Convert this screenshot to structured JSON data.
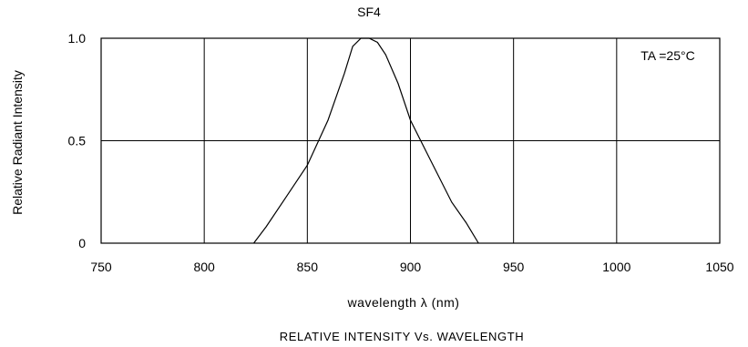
{
  "chart_data": {
    "type": "line",
    "title": "SF4",
    "xlabel": "wavelength λ (nm)",
    "ylabel": "Relative Radiant Intensity",
    "caption": "RELATIVE INTENSITY Vs. WAVELENGTH",
    "annotation": "TA =25°C",
    "xlim": [
      750,
      1050
    ],
    "ylim": [
      0,
      1.0
    ],
    "xticks": [
      "750",
      "800",
      "850",
      "900",
      "950",
      "1000",
      "1050"
    ],
    "yticks": [
      "0",
      "0.5",
      "1.0"
    ],
    "grid": true,
    "series": [
      {
        "x": [
          824,
          830,
          840,
          850,
          860,
          868,
          872,
          876,
          880,
          884,
          888,
          894,
          900,
          910,
          920,
          927,
          933
        ],
        "y": [
          0.0,
          0.08,
          0.23,
          0.38,
          0.6,
          0.83,
          0.96,
          1.0,
          1.0,
          0.98,
          0.92,
          0.78,
          0.6,
          0.4,
          0.2,
          0.1,
          0.0
        ]
      }
    ]
  }
}
